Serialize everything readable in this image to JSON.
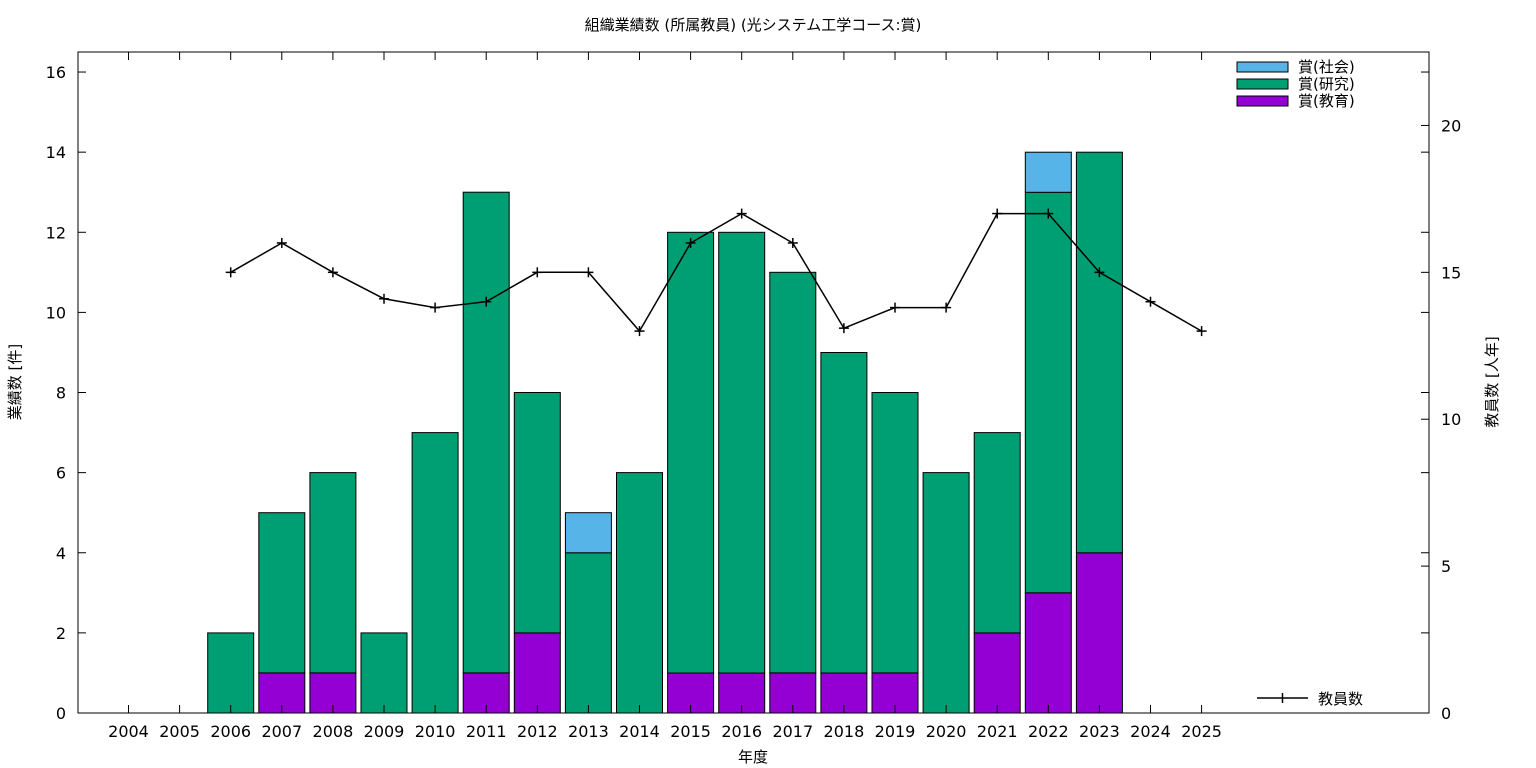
{
  "chart_data": {
    "type": "bar",
    "stacked": true,
    "title": "組織業績数 (所属教員) (光システム工学コース:賞)",
    "xlabel": "年度",
    "ylabel": "業績数 [件]",
    "y2label": "教員数 [人年]",
    "ylim": [
      0,
      16.5
    ],
    "y2lim": [
      0,
      22.5
    ],
    "yticks": [
      0,
      2,
      4,
      6,
      8,
      10,
      12,
      14,
      16
    ],
    "y2ticks": [
      0,
      5,
      10,
      15,
      20
    ],
    "categories": [
      "2004",
      "2005",
      "2006",
      "2007",
      "2008",
      "2009",
      "2010",
      "2011",
      "2012",
      "2013",
      "2014",
      "2015",
      "2016",
      "2017",
      "2018",
      "2019",
      "2020",
      "2021",
      "2022",
      "2023",
      "2024",
      "2025"
    ],
    "series": [
      {
        "name": "賞(教育)",
        "color": "#9400d3",
        "values": [
          0,
          0,
          0,
          1,
          1,
          0,
          0,
          1,
          2,
          0,
          0,
          1,
          1,
          1,
          1,
          1,
          0,
          2,
          3,
          4,
          0,
          0
        ]
      },
      {
        "name": "賞(研究)",
        "color": "#009e73",
        "values": [
          0,
          0,
          2,
          4,
          5,
          2,
          7,
          12,
          6,
          4,
          6,
          11,
          11,
          10,
          8,
          7,
          6,
          5,
          10,
          10,
          0,
          0
        ]
      },
      {
        "name": "賞(社会)",
        "color": "#56b4e9",
        "values": [
          0,
          0,
          0,
          0,
          0,
          0,
          0,
          0,
          0,
          1,
          0,
          0,
          0,
          0,
          0,
          0,
          0,
          0,
          1,
          0,
          0,
          0
        ]
      }
    ],
    "line_series": {
      "name": "教員数",
      "color": "#000000",
      "axis": "right",
      "values": [
        null,
        null,
        15,
        16,
        15,
        14.1,
        13.8,
        14,
        15,
        15,
        13,
        16,
        17,
        16,
        13.1,
        13.8,
        13.8,
        17,
        17,
        15,
        14,
        13
      ]
    },
    "legend_position": "top-right",
    "line_legend_position": "bottom-right",
    "grid": false
  }
}
